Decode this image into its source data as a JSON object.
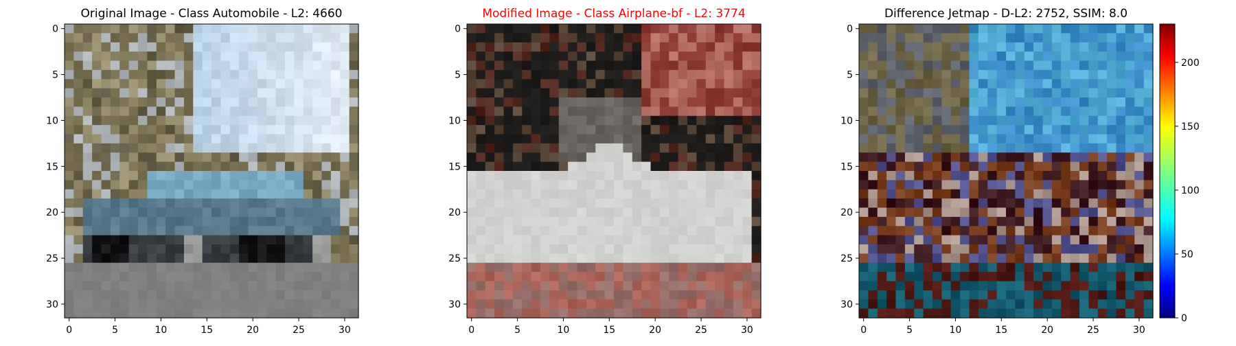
{
  "chart_data": [
    {
      "type": "heatmap",
      "title": "Original Image - Class Automobile - L2: 4660",
      "title_color": "#000000",
      "xlim": [
        -0.5,
        31.5
      ],
      "ylim": [
        31.5,
        -0.5
      ],
      "x_ticks": [
        0,
        5,
        10,
        15,
        20,
        25,
        30
      ],
      "y_ticks": [
        0,
        5,
        10,
        15,
        20,
        25,
        30
      ],
      "grid": false,
      "image_size": [
        32,
        32
      ],
      "content": "32x32 RGB image of a light blue car on a road with trees and sky"
    },
    {
      "type": "heatmap",
      "title": "Modified Image - Class Airplane-bf - L2: 3774",
      "title_color": "#ff0000",
      "xlim": [
        -0.5,
        31.5
      ],
      "ylim": [
        31.5,
        -0.5
      ],
      "x_ticks": [
        0,
        5,
        10,
        15,
        20,
        25,
        30
      ],
      "y_ticks": [
        0,
        5,
        10,
        15,
        20,
        25,
        30
      ],
      "grid": false,
      "image_size": [
        32,
        32
      ],
      "content": "32x32 RGB image of a white airplane-like shape over dark and reddish background"
    },
    {
      "type": "heatmap",
      "title": "Difference Jetmap - D-L2: 2752, SSIM: 8.0",
      "title_color": "#000000",
      "xlim": [
        -0.5,
        31.5
      ],
      "ylim": [
        31.5,
        -0.5
      ],
      "x_ticks": [
        0,
        5,
        10,
        15,
        20,
        25,
        30
      ],
      "y_ticks": [
        0,
        5,
        10,
        15,
        20,
        25,
        30
      ],
      "grid": false,
      "image_size": [
        32,
        32
      ],
      "colormap": "jet",
      "colorbar": {
        "range": [
          0,
          230
        ],
        "ticks": [
          0,
          50,
          100,
          150,
          200
        ]
      }
    }
  ]
}
